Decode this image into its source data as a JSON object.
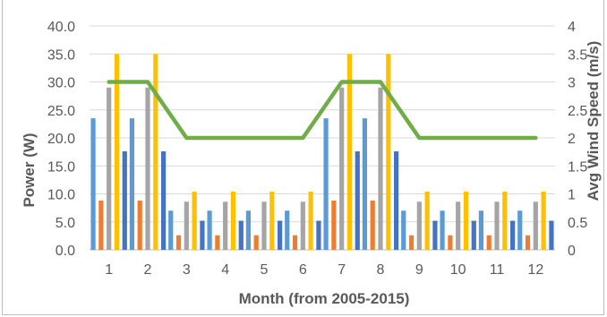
{
  "chart_data": {
    "type": "bar",
    "xlabel": "Month (from 2005-2015)",
    "ylabel": "Power (W)",
    "y2label": "Avg Wind Speed (m/s)",
    "ylim": [
      0,
      40
    ],
    "y2lim": [
      0,
      4
    ],
    "y_ticks": [
      "0.0",
      "5.0",
      "10.0",
      "15.0",
      "20.0",
      "25.0",
      "30.0",
      "35.0",
      "40.0"
    ],
    "y2_ticks": [
      "0",
      "0.5",
      "1",
      "1.5",
      "2",
      "2.5",
      "3",
      "3.5",
      "4"
    ],
    "categories": [
      "1",
      "2",
      "3",
      "4",
      "5",
      "6",
      "7",
      "8",
      "9",
      "10",
      "11",
      "12"
    ],
    "grid": true,
    "series": [
      {
        "type": "bar",
        "axis": "left",
        "color": "#5b9bd5",
        "values": [
          23.5,
          23.5,
          7.0,
          7.0,
          7.0,
          7.0,
          23.5,
          23.5,
          7.0,
          7.0,
          7.0,
          7.0
        ]
      },
      {
        "type": "bar",
        "axis": "left",
        "color": "#ed7d31",
        "values": [
          8.8,
          8.8,
          2.6,
          2.6,
          2.6,
          2.6,
          8.8,
          8.8,
          2.6,
          2.6,
          2.6,
          2.6
        ]
      },
      {
        "type": "bar",
        "axis": "left",
        "color": "#a5a5a5",
        "values": [
          29.0,
          29.0,
          8.6,
          8.6,
          8.6,
          8.6,
          29.0,
          29.0,
          8.6,
          8.6,
          8.6,
          8.6
        ]
      },
      {
        "type": "bar",
        "axis": "left",
        "color": "#ffc000",
        "values": [
          35.0,
          35.0,
          10.4,
          10.4,
          10.4,
          10.4,
          35.0,
          35.0,
          10.4,
          10.4,
          10.4,
          10.4
        ]
      },
      {
        "type": "bar",
        "axis": "left",
        "color": "#4472c4",
        "values": [
          17.6,
          17.6,
          5.2,
          5.2,
          5.2,
          5.2,
          17.6,
          17.6,
          5.2,
          5.2,
          5.2,
          5.2
        ]
      },
      {
        "type": "line",
        "axis": "right",
        "color": "#70ad47",
        "values": [
          3,
          3,
          2,
          2,
          2,
          2,
          3,
          3,
          2,
          2,
          2,
          2
        ]
      }
    ]
  }
}
